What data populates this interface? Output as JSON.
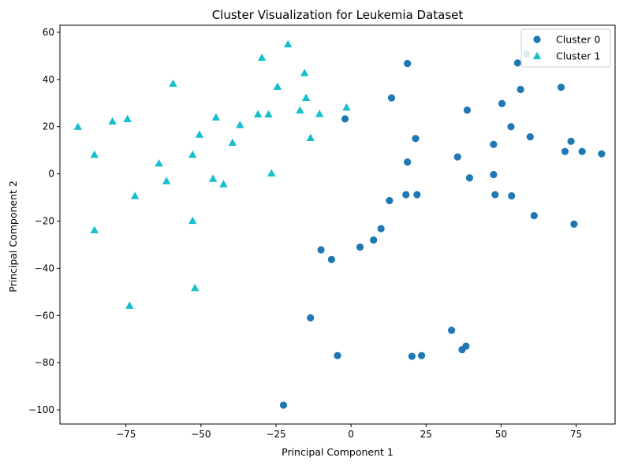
{
  "chart_data": {
    "type": "scatter",
    "title": "Cluster Visualization for Leukemia Dataset",
    "xlabel": "Principal Component 1",
    "ylabel": "Principal Component 2",
    "xlim": [
      -97,
      88
    ],
    "ylim": [
      -106,
      63
    ],
    "xticks": [
      -75,
      -50,
      -25,
      0,
      25,
      50,
      75
    ],
    "yticks": [
      -100,
      -80,
      -60,
      -40,
      -20,
      0,
      20,
      40,
      60
    ],
    "xtick_labels": [
      "−75",
      "−50",
      "−25",
      "0",
      "25",
      "50",
      "75"
    ],
    "ytick_labels": [
      "−100",
      "−80",
      "−60",
      "−40",
      "−20",
      "0",
      "20",
      "40",
      "60"
    ],
    "grid": false,
    "legend_position": "top-right",
    "series": [
      {
        "name": "Cluster 0",
        "marker": "circle",
        "color": "#1f77b4",
        "points": [
          [
            18.8,
            46.8
          ],
          [
            13.5,
            32.2
          ],
          [
            -2.0,
            23.3
          ],
          [
            21.5,
            15.0
          ],
          [
            18.8,
            5.0
          ],
          [
            18.3,
            -8.8
          ],
          [
            22.0,
            -8.8
          ],
          [
            12.8,
            -11.3
          ],
          [
            10.0,
            -23.2
          ],
          [
            7.5,
            -28.0
          ],
          [
            3.0,
            -31.0
          ],
          [
            -10.0,
            -32.2
          ],
          [
            -6.5,
            -36.3
          ],
          [
            -13.5,
            -61.0
          ],
          [
            -4.5,
            -77.0
          ],
          [
            -22.5,
            -98.0
          ],
          [
            20.3,
            -77.3
          ],
          [
            23.5,
            -77.0
          ],
          [
            33.5,
            -66.3
          ],
          [
            37.0,
            -74.5
          ],
          [
            38.3,
            -73.0
          ],
          [
            38.7,
            27.0
          ],
          [
            39.5,
            -1.7
          ],
          [
            35.5,
            7.2
          ],
          [
            47.5,
            12.5
          ],
          [
            47.5,
            -0.3
          ],
          [
            48.0,
            -8.8
          ],
          [
            50.3,
            29.8
          ],
          [
            53.3,
            20.0
          ],
          [
            53.5,
            -9.3
          ],
          [
            55.5,
            47.0
          ],
          [
            56.5,
            35.8
          ],
          [
            58.5,
            50.8
          ],
          [
            59.7,
            15.7
          ],
          [
            61.0,
            -17.7
          ],
          [
            70.0,
            36.7
          ],
          [
            71.3,
            9.5
          ],
          [
            73.3,
            13.8
          ],
          [
            74.3,
            -21.3
          ],
          [
            77.0,
            9.5
          ],
          [
            83.5,
            8.5
          ]
        ]
      },
      {
        "name": "Cluster 1",
        "marker": "triangle",
        "color": "#17becf",
        "points": [
          [
            -91.0,
            20.0
          ],
          [
            -85.5,
            8.2
          ],
          [
            -85.5,
            -23.8
          ],
          [
            -79.5,
            22.3
          ],
          [
            -74.5,
            23.3
          ],
          [
            -72.0,
            -9.3
          ],
          [
            -73.8,
            -55.8
          ],
          [
            -64.0,
            4.5
          ],
          [
            -61.5,
            -3.0
          ],
          [
            -59.3,
            38.3
          ],
          [
            -52.8,
            8.2
          ],
          [
            -52.8,
            -19.8
          ],
          [
            -52.0,
            -48.3
          ],
          [
            -50.5,
            16.7
          ],
          [
            -46.0,
            -2.0
          ],
          [
            -45.0,
            24.0
          ],
          [
            -42.5,
            -4.3
          ],
          [
            -39.5,
            13.3
          ],
          [
            -37.0,
            20.8
          ],
          [
            -31.0,
            25.3
          ],
          [
            -29.7,
            49.3
          ],
          [
            -27.5,
            25.3
          ],
          [
            -26.5,
            0.3
          ],
          [
            -24.5,
            37.0
          ],
          [
            -21.0,
            55.0
          ],
          [
            -17.0,
            27.0
          ],
          [
            -15.5,
            42.8
          ],
          [
            -15.0,
            32.3
          ],
          [
            -13.5,
            15.3
          ],
          [
            -10.5,
            25.5
          ],
          [
            -1.5,
            28.2
          ]
        ]
      }
    ]
  }
}
